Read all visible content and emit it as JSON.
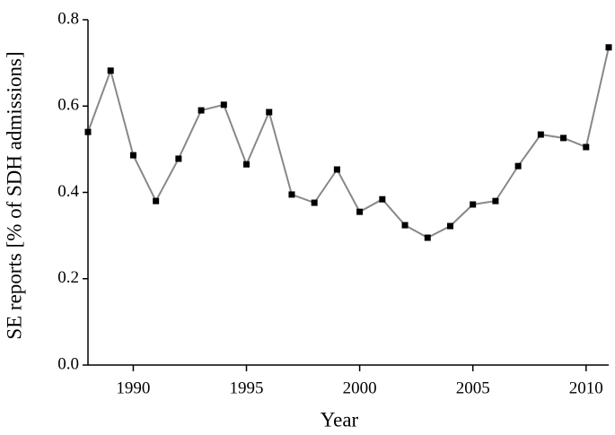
{
  "chart_data": {
    "type": "line",
    "x_label": "Year",
    "y_label": "SE reports [% of  SDH admissions]",
    "x": [
      1988,
      1989,
      1990,
      1991,
      1992,
      1993,
      1994,
      1995,
      1996,
      1997,
      1998,
      1999,
      2000,
      2001,
      2002,
      2003,
      2004,
      2005,
      2006,
      2007,
      2008,
      2009,
      2010,
      2011
    ],
    "series": [
      {
        "color": "#888888",
        "marker_color": "#000000",
        "values": [
          0.54,
          0.682,
          0.486,
          0.38,
          0.478,
          0.59,
          0.603,
          0.465,
          0.586,
          0.395,
          0.376,
          0.453,
          0.355,
          0.384,
          0.324,
          0.295,
          0.322,
          0.372,
          0.38,
          0.461,
          0.534,
          0.526,
          0.505,
          0.736
        ]
      }
    ],
    "xlim": [
      1988,
      2011
    ],
    "xticks": [
      1990,
      1995,
      2000,
      2005,
      2010
    ],
    "ylim": [
      0,
      0.8
    ],
    "yticks": [
      {
        "value": 0,
        "label": "0.0"
      },
      0.2,
      0.4,
      0.6,
      0.8
    ],
    "grid": false
  }
}
